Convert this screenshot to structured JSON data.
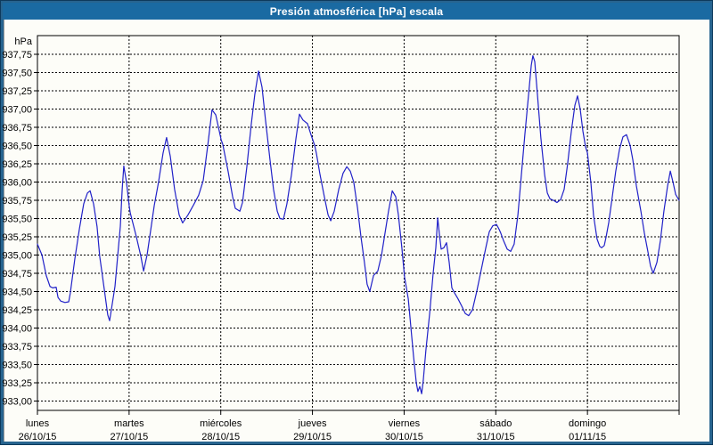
{
  "window": {
    "title": "Presión atmosférica [hPa] escala"
  },
  "colors": {
    "frame": "#27648f",
    "titlebar": "#1a6aa2",
    "title_text": "#ffffff",
    "plot_background": "#fdfdf8",
    "grid": "#000000",
    "border": "#000000",
    "line": "#2121c8",
    "text": "#000000"
  },
  "chart_data": {
    "type": "line",
    "title": "Presión atmosférica [hPa] escala",
    "y_unit_label": "hPa",
    "ylim": [
      933.0,
      937.75
    ],
    "y_tick_step": 0.25,
    "y_tick_labels": [
      "937,75",
      "937,50",
      "937,25",
      "937,00",
      "936,75",
      "936,50",
      "936,25",
      "936,00",
      "935,75",
      "935,50",
      "935,25",
      "935,00",
      "934,75",
      "934,50",
      "934,25",
      "934,00",
      "933,75",
      "933,50",
      "933,25",
      "933,00"
    ],
    "x_axis": {
      "hours_total": 168,
      "hours_per_day": 24,
      "categories": [
        {
          "day": "lunes",
          "date": "26/10/15"
        },
        {
          "day": "martes",
          "date": "27/10/15"
        },
        {
          "day": "miércoles",
          "date": "28/10/15"
        },
        {
          "day": "jueves",
          "date": "29/10/15"
        },
        {
          "day": "viernes",
          "date": "30/10/15"
        },
        {
          "day": "sábado",
          "date": "31/10/15"
        },
        {
          "day": "domingo",
          "date": "01/11/15"
        }
      ]
    },
    "grid": true,
    "legend": false,
    "series": [
      {
        "name": "Presión atmosférica",
        "color": "#2121c8",
        "points": [
          [
            0,
            935.15
          ],
          [
            1.2,
            935.0
          ],
          [
            2.3,
            934.72
          ],
          [
            3.3,
            934.57
          ],
          [
            4.0,
            934.55
          ],
          [
            4.9,
            934.56
          ],
          [
            5.4,
            934.42
          ],
          [
            6.1,
            934.37
          ],
          [
            7.2,
            934.35
          ],
          [
            8.2,
            934.36
          ],
          [
            8.6,
            934.48
          ],
          [
            9.8,
            934.95
          ],
          [
            11.0,
            935.36
          ],
          [
            12.1,
            935.7
          ],
          [
            13.1,
            935.85
          ],
          [
            13.8,
            935.88
          ],
          [
            14.7,
            935.7
          ],
          [
            15.6,
            935.39
          ],
          [
            16.3,
            934.98
          ],
          [
            17.5,
            934.53
          ],
          [
            18.4,
            934.18
          ],
          [
            18.9,
            934.1
          ],
          [
            20.3,
            934.57
          ],
          [
            21.0,
            934.98
          ],
          [
            21.7,
            935.39
          ],
          [
            22.2,
            935.9
          ],
          [
            22.6,
            936.22
          ],
          [
            23.3,
            936.0
          ],
          [
            24.0,
            935.68
          ],
          [
            24.3,
            935.58
          ],
          [
            25.9,
            935.25
          ],
          [
            27.1,
            934.98
          ],
          [
            27.8,
            934.78
          ],
          [
            28.7,
            935.0
          ],
          [
            29.4,
            935.25
          ],
          [
            30.6,
            935.68
          ],
          [
            31.7,
            936.0
          ],
          [
            32.9,
            936.4
          ],
          [
            33.8,
            936.61
          ],
          [
            34.8,
            936.35
          ],
          [
            35.9,
            935.9
          ],
          [
            37.1,
            935.55
          ],
          [
            38.0,
            935.44
          ],
          [
            39.4,
            935.55
          ],
          [
            40.8,
            935.68
          ],
          [
            42.2,
            935.82
          ],
          [
            43.4,
            936.02
          ],
          [
            44.6,
            936.5
          ],
          [
            45.7,
            936.99
          ],
          [
            46.7,
            936.92
          ],
          [
            47.6,
            936.7
          ],
          [
            48.1,
            936.58
          ],
          [
            48.5,
            936.52
          ],
          [
            49.9,
            936.15
          ],
          [
            51.1,
            935.8
          ],
          [
            51.8,
            935.64
          ],
          [
            53.0,
            935.6
          ],
          [
            53.7,
            935.72
          ],
          [
            54.8,
            936.2
          ],
          [
            56.0,
            936.8
          ],
          [
            56.9,
            937.2
          ],
          [
            57.9,
            937.52
          ],
          [
            58.8,
            937.3
          ],
          [
            59.7,
            936.85
          ],
          [
            60.9,
            936.3
          ],
          [
            61.8,
            935.9
          ],
          [
            62.8,
            935.6
          ],
          [
            63.5,
            935.5
          ],
          [
            64.4,
            935.49
          ],
          [
            65.3,
            935.7
          ],
          [
            66.5,
            936.1
          ],
          [
            67.7,
            936.6
          ],
          [
            68.6,
            936.93
          ],
          [
            69.5,
            936.85
          ],
          [
            70.7,
            936.8
          ],
          [
            71.6,
            936.65
          ],
          [
            72.6,
            936.5
          ],
          [
            73.0,
            936.4
          ],
          [
            74.0,
            936.1
          ],
          [
            75.1,
            935.8
          ],
          [
            76.1,
            935.55
          ],
          [
            76.8,
            935.47
          ],
          [
            77.7,
            935.6
          ],
          [
            78.9,
            935.9
          ],
          [
            80.0,
            936.12
          ],
          [
            81.0,
            936.21
          ],
          [
            81.9,
            936.15
          ],
          [
            82.8,
            936.0
          ],
          [
            83.8,
            935.65
          ],
          [
            84.7,
            935.25
          ],
          [
            85.6,
            934.9
          ],
          [
            86.3,
            934.6
          ],
          [
            87.0,
            934.5
          ],
          [
            88.0,
            934.72
          ],
          [
            89.1,
            934.78
          ],
          [
            90.1,
            935.0
          ],
          [
            91.0,
            935.3
          ],
          [
            91.9,
            935.6
          ],
          [
            92.9,
            935.88
          ],
          [
            93.8,
            935.8
          ],
          [
            94.5,
            935.55
          ],
          [
            95.4,
            935.1
          ],
          [
            96.1,
            934.7
          ],
          [
            97.1,
            934.4
          ],
          [
            97.8,
            934.0
          ],
          [
            98.5,
            933.6
          ],
          [
            99.2,
            933.25
          ],
          [
            99.6,
            933.13
          ],
          [
            100.1,
            933.2
          ],
          [
            100.6,
            933.1
          ],
          [
            101.0,
            933.28
          ],
          [
            101.7,
            933.7
          ],
          [
            102.7,
            934.2
          ],
          [
            103.6,
            934.75
          ],
          [
            104.3,
            935.1
          ],
          [
            104.8,
            935.51
          ],
          [
            105.2,
            935.3
          ],
          [
            105.7,
            935.08
          ],
          [
            106.4,
            935.1
          ],
          [
            107.1,
            935.17
          ],
          [
            107.8,
            934.9
          ],
          [
            108.5,
            934.55
          ],
          [
            109.2,
            934.48
          ],
          [
            110.1,
            934.4
          ],
          [
            111.1,
            934.3
          ],
          [
            112.0,
            934.2
          ],
          [
            112.9,
            934.17
          ],
          [
            113.9,
            934.25
          ],
          [
            115.0,
            934.5
          ],
          [
            116.2,
            934.8
          ],
          [
            117.4,
            935.1
          ],
          [
            118.3,
            935.32
          ],
          [
            119.2,
            935.4
          ],
          [
            120.2,
            935.42
          ],
          [
            120.9,
            935.35
          ],
          [
            121.3,
            935.3
          ],
          [
            122.0,
            935.2
          ],
          [
            123.0,
            935.08
          ],
          [
            123.9,
            935.05
          ],
          [
            124.8,
            935.15
          ],
          [
            125.8,
            935.55
          ],
          [
            126.7,
            936.1
          ],
          [
            127.6,
            936.65
          ],
          [
            128.6,
            937.2
          ],
          [
            129.3,
            937.6
          ],
          [
            129.7,
            937.73
          ],
          [
            130.2,
            937.65
          ],
          [
            130.9,
            937.2
          ],
          [
            131.8,
            936.6
          ],
          [
            132.8,
            936.1
          ],
          [
            133.5,
            935.85
          ],
          [
            134.2,
            935.77
          ],
          [
            135.1,
            935.75
          ],
          [
            136.0,
            935.72
          ],
          [
            137.0,
            935.76
          ],
          [
            137.9,
            935.9
          ],
          [
            138.8,
            936.25
          ],
          [
            139.8,
            936.7
          ],
          [
            140.7,
            937.05
          ],
          [
            141.4,
            937.18
          ],
          [
            142.1,
            937.0
          ],
          [
            142.8,
            936.7
          ],
          [
            143.5,
            936.48
          ],
          [
            144.0,
            936.4
          ],
          [
            144.9,
            935.99
          ],
          [
            145.6,
            935.54
          ],
          [
            146.5,
            935.22
          ],
          [
            147.2,
            935.12
          ],
          [
            147.7,
            935.1
          ],
          [
            148.4,
            935.13
          ],
          [
            148.9,
            935.25
          ],
          [
            149.6,
            935.45
          ],
          [
            150.5,
            935.8
          ],
          [
            151.4,
            936.15
          ],
          [
            152.4,
            936.45
          ],
          [
            153.3,
            936.62
          ],
          [
            154.2,
            936.65
          ],
          [
            155.2,
            936.5
          ],
          [
            155.9,
            936.3
          ],
          [
            156.8,
            935.95
          ],
          [
            158.0,
            935.6
          ],
          [
            158.9,
            935.3
          ],
          [
            159.8,
            935.05
          ],
          [
            160.5,
            934.85
          ],
          [
            161.2,
            934.75
          ],
          [
            162.2,
            934.9
          ],
          [
            163.1,
            935.2
          ],
          [
            164.0,
            935.6
          ],
          [
            165.0,
            935.95
          ],
          [
            165.7,
            936.15
          ],
          [
            166.4,
            936.0
          ],
          [
            167.1,
            935.83
          ],
          [
            168.0,
            935.75
          ]
        ]
      }
    ]
  }
}
